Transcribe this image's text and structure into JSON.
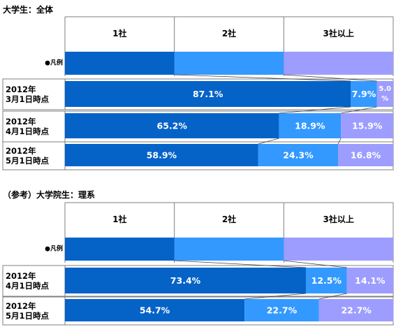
{
  "colors": {
    "seg1": "#0563C8",
    "seg2": "#3399FF",
    "seg3": "#9D9DFF",
    "grid": "#7F7F7F",
    "connector": "#404040"
  },
  "chart_data": [
    {
      "type": "bar",
      "orientation": "horizontal",
      "stacked": "percent",
      "title": "大学生：全体",
      "legend_label": "●凡例",
      "series": [
        {
          "name": "1社",
          "values": [
            87.1,
            65.2,
            58.9
          ]
        },
        {
          "name": "2社",
          "values": [
            7.9,
            18.9,
            24.3
          ]
        },
        {
          "name": "3社以上",
          "values": [
            5.0,
            15.9,
            16.8
          ]
        }
      ],
      "categories": [
        {
          "line1": "2012年",
          "line2": "3月1日時点"
        },
        {
          "line1": "2012年",
          "line2": "4月1日時点"
        },
        {
          "line1": "2012年",
          "line2": "5月1日時点"
        }
      ],
      "labels": [
        [
          "87.1%",
          "7.9%",
          "5.0%"
        ],
        [
          "65.2%",
          "18.9%",
          "15.9%"
        ],
        [
          "58.9%",
          "24.3%",
          "16.8%"
        ]
      ]
    },
    {
      "type": "bar",
      "orientation": "horizontal",
      "stacked": "percent",
      "title": "（参考）大学院生：理系",
      "legend_label": "●凡例",
      "series": [
        {
          "name": "1社",
          "values": [
            73.4,
            54.7
          ]
        },
        {
          "name": "2社",
          "values": [
            12.5,
            22.7
          ]
        },
        {
          "name": "3社以上",
          "values": [
            14.1,
            22.7
          ]
        }
      ],
      "categories": [
        {
          "line1": "2012年",
          "line2": "4月1日時点"
        },
        {
          "line1": "2012年",
          "line2": "5月1日時点"
        }
      ],
      "labels": [
        [
          "73.4%",
          "12.5%",
          "14.1%"
        ],
        [
          "54.7%",
          "22.7%",
          "22.7%"
        ]
      ]
    }
  ]
}
